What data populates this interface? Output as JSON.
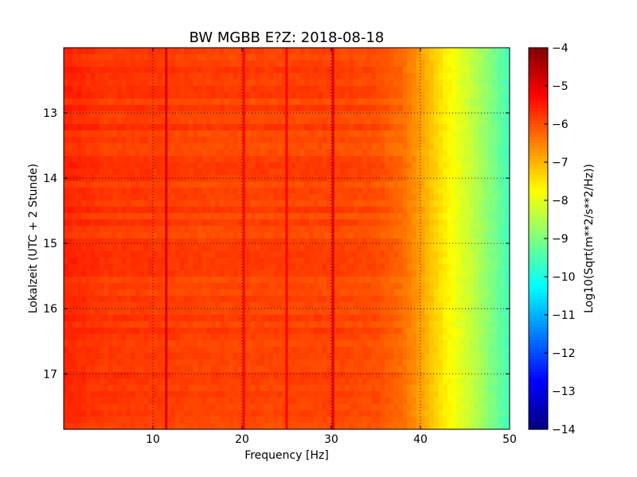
{
  "chart_data": {
    "type": "heatmap",
    "title": "BW MGBB E?Z: 2018-08-18",
    "xlabel": "Frequency [Hz]",
    "ylabel": "Lokalzeit (UTC + 2 Stunde)",
    "colorbar_label": "Log10(Sqrt(m**2/s**2/Hz))",
    "xlim": [
      0,
      50
    ],
    "ylim": [
      12.0,
      17.85
    ],
    "y_inverted": true,
    "xticks": [
      10,
      20,
      30,
      40,
      50
    ],
    "yticks": [
      13,
      14,
      15,
      16,
      17
    ],
    "clim": [
      -14,
      -4
    ],
    "cbar_ticks": [
      -4,
      -5,
      -6,
      -7,
      -8,
      -9,
      -10,
      -11,
      -12,
      -13,
      -14
    ],
    "colormap": "jet",
    "grid": true,
    "grid_style": "dotted",
    "baseline_profile": {
      "frequency_hz": [
        0,
        5,
        10,
        15,
        20,
        25,
        30,
        35,
        38,
        40,
        42,
        44,
        46,
        48,
        50
      ],
      "log10_amplitude": [
        -5.6,
        -5.8,
        -5.8,
        -5.9,
        -5.9,
        -5.9,
        -5.9,
        -6.0,
        -6.3,
        -6.8,
        -7.4,
        -7.9,
        -8.4,
        -9.0,
        -9.6
      ]
    },
    "spectral_lines": [
      {
        "frequency_hz": 11.5,
        "log10_amplitude": -4.9
      },
      {
        "frequency_hz": 20.2,
        "log10_amplitude": -5.3
      },
      {
        "frequency_hz": 25.0,
        "log10_amplitude": -5.3
      },
      {
        "frequency_hz": 30.2,
        "log10_amplitude": -5.0
      }
    ]
  }
}
